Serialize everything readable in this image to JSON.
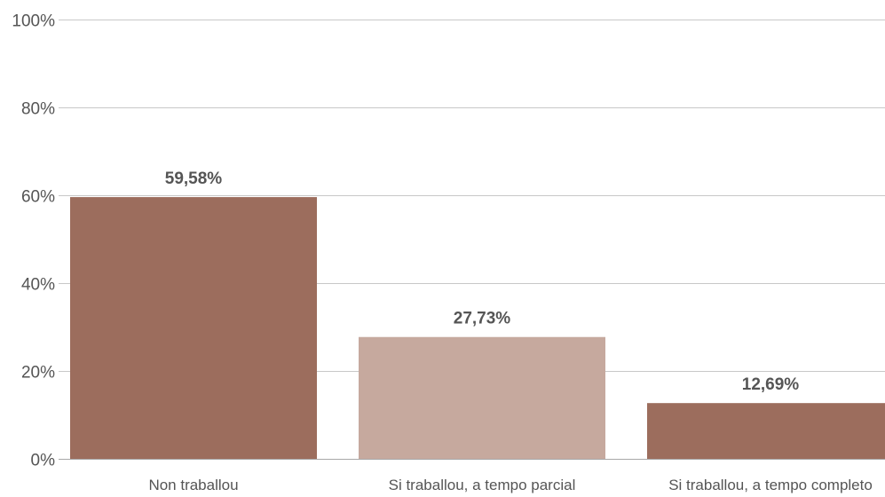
{
  "chart_data": {
    "type": "bar",
    "categories": [
      "Non traballou",
      "Si traballou, a tempo parcial",
      "Si traballou, a tempo completo"
    ],
    "values": [
      59.58,
      27.73,
      12.69
    ],
    "value_labels": [
      "59,58%",
      "27,73%",
      "12,69%"
    ],
    "colors": [
      "#9c6d5d",
      "#c6a99e",
      "#9c6d5d"
    ],
    "ylim": [
      0,
      100
    ],
    "yticks": [
      0,
      20,
      40,
      60,
      80,
      100
    ],
    "ytick_labels": [
      "0%",
      "20%",
      "40%",
      "60%",
      "80%",
      "100%"
    ],
    "title": "",
    "xlabel": "",
    "ylabel": "",
    "grid": true,
    "legend": "none"
  }
}
